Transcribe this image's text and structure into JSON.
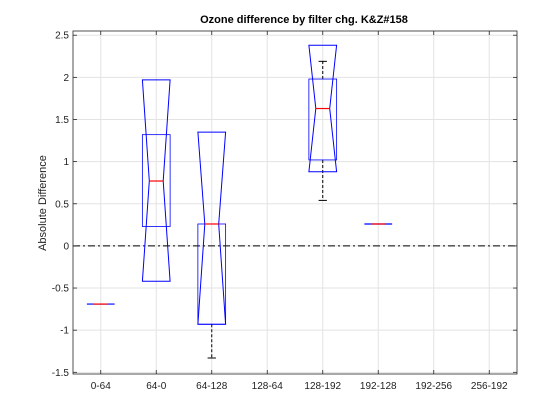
{
  "chart_data": {
    "type": "box",
    "title": "Ozone difference by filter chg. K&Z#158",
    "xlabel": "",
    "ylabel": "Absolute Difference",
    "categories": [
      "0-64",
      "64-0",
      "64-128",
      "128-64",
      "128-192",
      "192-128",
      "192-256",
      "256-192"
    ],
    "ylim": [
      -1.52,
      2.55
    ],
    "yticks": [
      -1.5,
      -1,
      -0.5,
      0,
      0.5,
      1,
      1.5,
      2,
      2.5
    ],
    "grid": true,
    "reference_line_y": 0,
    "boxes": [
      {
        "category": "0-64",
        "min": -0.69,
        "q1": -0.69,
        "median": -0.69,
        "q3": -0.69,
        "max": -0.69,
        "notch_low": -0.69,
        "notch_high": -0.69,
        "outliers": []
      },
      {
        "category": "64-0",
        "min": 0.23,
        "q1": 0.23,
        "median": 0.77,
        "q3": 1.32,
        "max": 1.32,
        "notch_low": -0.42,
        "notch_high": 1.97,
        "outliers": []
      },
      {
        "category": "64-128",
        "min": -1.33,
        "q1": -0.93,
        "median": 0.26,
        "q3": 0.26,
        "max": 0.26,
        "notch_low": -0.93,
        "notch_high": 1.35,
        "outliers": []
      },
      {
        "category": "128-64",
        "min": null,
        "q1": null,
        "median": null,
        "q3": null,
        "max": null,
        "notch_low": null,
        "notch_high": null,
        "outliers": []
      },
      {
        "category": "128-192",
        "min": 0.54,
        "q1": 1.02,
        "median": 1.63,
        "q3": 1.98,
        "max": 2.19,
        "notch_low": 0.88,
        "notch_high": 2.38,
        "outliers": []
      },
      {
        "category": "192-128",
        "min": 0.26,
        "q1": 0.26,
        "median": 0.26,
        "q3": 0.26,
        "max": 0.26,
        "notch_low": 0.26,
        "notch_high": 0.26,
        "outliers": []
      },
      {
        "category": "192-256",
        "min": null,
        "q1": null,
        "median": null,
        "q3": null,
        "max": null,
        "notch_low": null,
        "notch_high": null,
        "outliers": []
      },
      {
        "category": "256-192",
        "min": null,
        "q1": null,
        "median": null,
        "q3": null,
        "max": null,
        "notch_low": null,
        "notch_high": null,
        "outliers": []
      }
    ],
    "colors": {
      "box": "#0000ff",
      "median": "#ff0000",
      "whisker": "#000000",
      "grid": "#e3e3e3",
      "axis": "#262626",
      "reference": "#000000"
    }
  }
}
